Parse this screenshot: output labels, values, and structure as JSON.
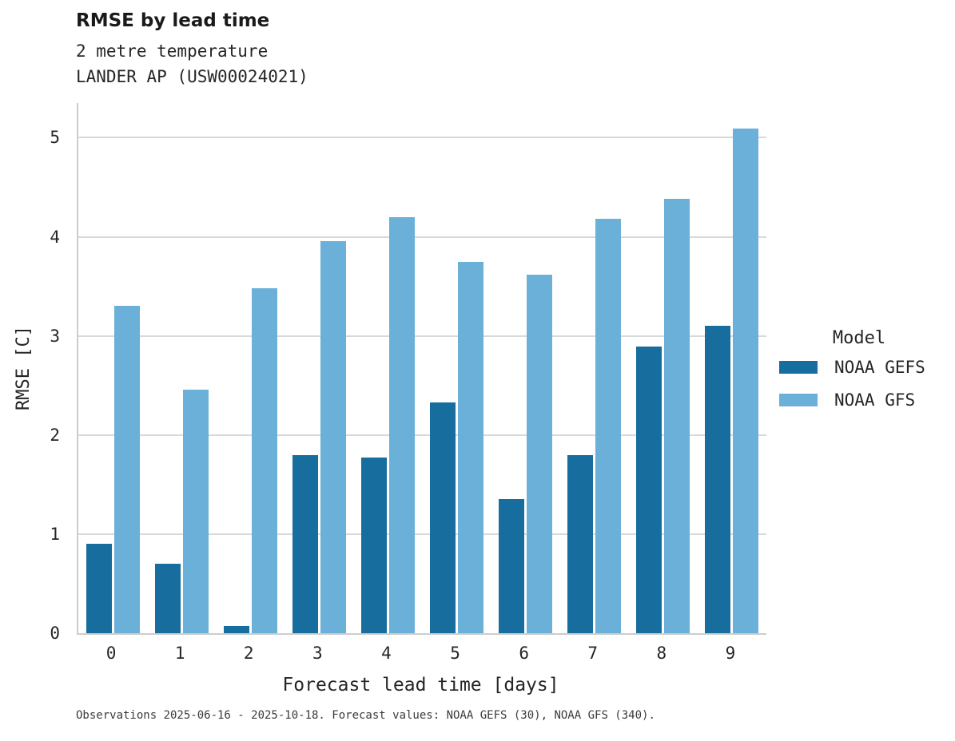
{
  "header": {
    "title": "RMSE by lead time",
    "subtitle_line1": "2 metre temperature",
    "subtitle_line2": "LANDER AP (USW00024021)"
  },
  "legend": {
    "title": "Model",
    "items": [
      {
        "label": "NOAA GEFS",
        "color": "#176d9d"
      },
      {
        "label": "NOAA GFS",
        "color": "#6bb0d8"
      }
    ]
  },
  "caption": "Observations 2025-06-16 - 2025-10-18. Forecast values: NOAA GEFS (30), NOAA GFS (340).",
  "colors": {
    "gefs_bar": "#176d9d",
    "gfs_bar": "#6bb0d8",
    "gridline": "#d9d9d9",
    "spine": "#cdcdcd",
    "background": "#ffffff",
    "text": "#262626"
  },
  "chart_data": {
    "type": "bar",
    "title": "RMSE by lead time",
    "subtitle": [
      "2 metre temperature",
      "LANDER AP (USW00024021)"
    ],
    "categories": [
      "0",
      "1",
      "2",
      "3",
      "4",
      "5",
      "6",
      "7",
      "8",
      "9"
    ],
    "series": [
      {
        "name": "NOAA GEFS",
        "color": "#176d9d",
        "values": [
          0.9,
          0.7,
          0.07,
          1.8,
          1.77,
          2.33,
          1.35,
          1.8,
          2.89,
          3.1
        ]
      },
      {
        "name": "NOAA GFS",
        "color": "#6bb0d8",
        "values": [
          3.3,
          2.46,
          3.48,
          3.96,
          4.2,
          3.75,
          3.62,
          4.18,
          4.38,
          5.09
        ]
      }
    ],
    "xlabel": "Forecast lead time [days]",
    "ylabel": "RMSE [C]",
    "ylim": [
      0,
      5.35
    ],
    "yticks": [
      0,
      1,
      2,
      3,
      4,
      5
    ],
    "grid": true,
    "legend_title": "Model",
    "legend_position": "right"
  }
}
